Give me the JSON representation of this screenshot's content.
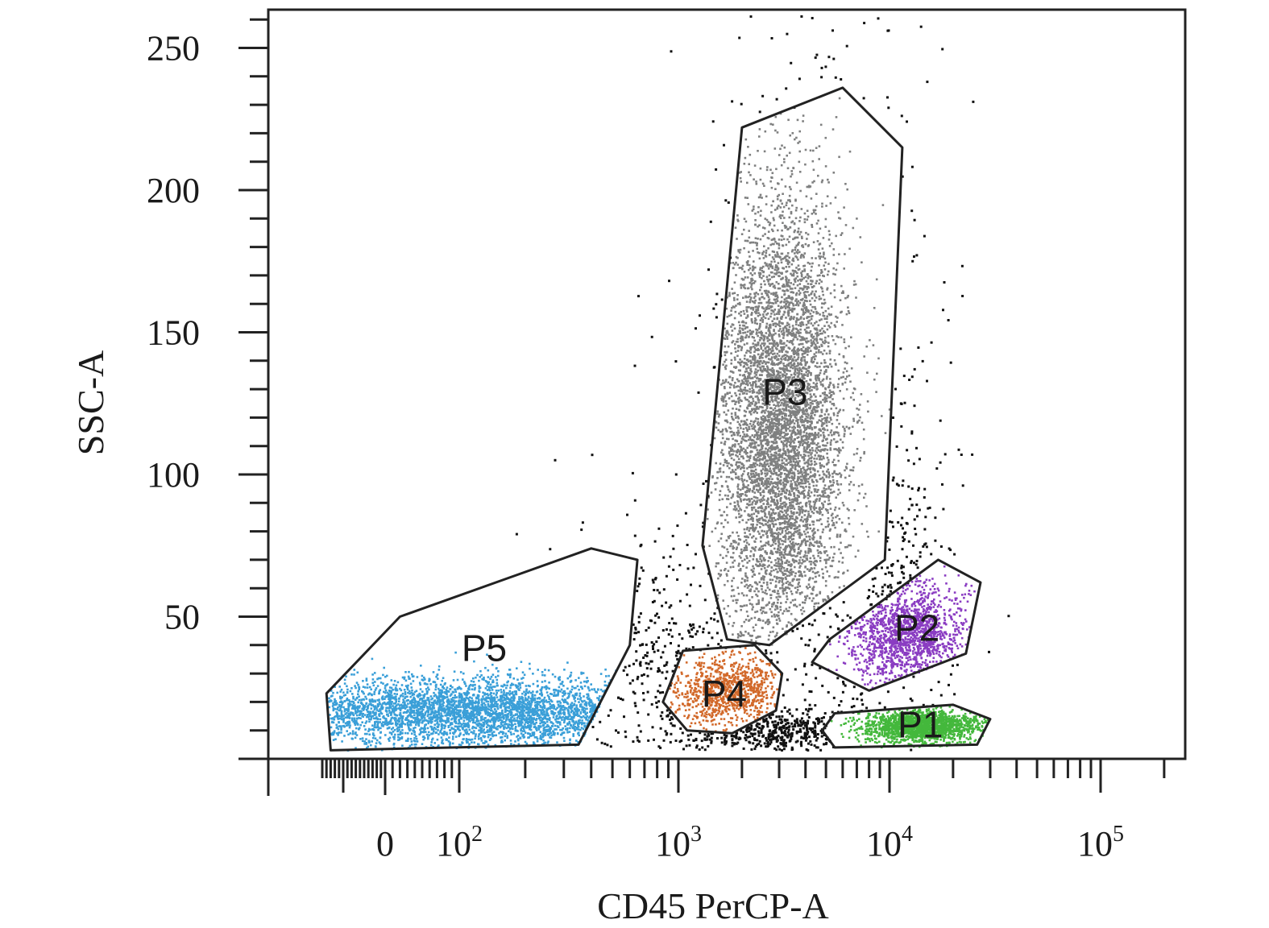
{
  "chart_data": {
    "type": "scatter",
    "title": "",
    "xlabel": "CD45 PerCP-A",
    "ylabel": "SSC-A",
    "x_scale": "biexponential",
    "ylim": [
      0,
      260
    ],
    "x_tick_labels": [
      {
        "value": 0,
        "base": "0",
        "exp": ""
      },
      {
        "value": 100,
        "base": "10",
        "exp": "2"
      },
      {
        "value": 1000,
        "base": "10",
        "exp": "3"
      },
      {
        "value": 10000,
        "base": "10",
        "exp": "4"
      },
      {
        "value": 100000,
        "base": "10",
        "exp": "5"
      }
    ],
    "y_ticks": [
      50,
      100,
      150,
      200,
      250
    ],
    "grid": false,
    "legend": "none",
    "gates": [
      {
        "name": "P1",
        "color": "#44b83c",
        "vertices": [
          [
            5500,
            16
          ],
          [
            20000,
            19
          ],
          [
            30000,
            14
          ],
          [
            26000,
            5
          ],
          [
            5500,
            4
          ],
          [
            4800,
            10
          ]
        ],
        "label_pos": [
          14000,
          12
        ],
        "cloud": {
          "cx": 14000,
          "cy": 12,
          "sx": 0.14,
          "sy": 3.0,
          "n": 1700
        }
      },
      {
        "name": "P2",
        "color": "#8a3cc2",
        "vertices": [
          [
            5200,
            42
          ],
          [
            17000,
            70
          ],
          [
            27000,
            62
          ],
          [
            23000,
            37
          ],
          [
            8000,
            24
          ],
          [
            4300,
            34
          ]
        ],
        "label_pos": [
          13500,
          46
        ],
        "cloud": {
          "cx": 12000,
          "cy": 44,
          "sx": 0.14,
          "sy": 9.0,
          "n": 1400
        }
      },
      {
        "name": "P3",
        "color": "#7f8080",
        "vertices": [
          [
            2000,
            222
          ],
          [
            6000,
            236
          ],
          [
            11500,
            215
          ],
          [
            9500,
            70
          ],
          [
            2700,
            40
          ],
          [
            1700,
            42
          ],
          [
            1300,
            75
          ]
        ],
        "label_pos": [
          3200,
          129
        ],
        "cloud": {
          "cx": 3000,
          "cy": 115,
          "sx": 0.15,
          "sy": 42,
          "n": 6000
        }
      },
      {
        "name": "P4",
        "color": "#d2692a",
        "vertices": [
          [
            1050,
            38
          ],
          [
            2300,
            40
          ],
          [
            3100,
            30
          ],
          [
            2900,
            17
          ],
          [
            1800,
            9
          ],
          [
            1100,
            10
          ],
          [
            850,
            20
          ]
        ],
        "label_pos": [
          1650,
          23
        ],
        "cloud": {
          "cx": 1700,
          "cy": 24,
          "sx": 0.12,
          "sy": 6.5,
          "n": 900
        }
      },
      {
        "name": "P5",
        "color": "#3a9fd8",
        "vertices": [
          [
            20,
            50
          ],
          [
            400,
            74
          ],
          [
            650,
            70
          ],
          [
            600,
            40
          ],
          [
            350,
            5
          ],
          [
            -130,
            3
          ],
          [
            -140,
            23
          ]
        ],
        "label_pos": [
          130,
          39
        ],
        "cloud": {
          "cx": 110,
          "cy": 17,
          "sx": 0.55,
          "sy": 6.0,
          "n": 3500
        }
      }
    ]
  }
}
